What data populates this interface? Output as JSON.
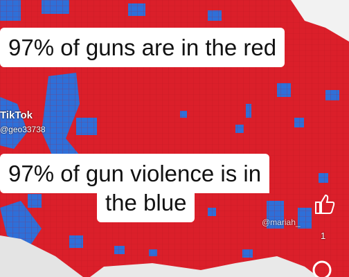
{
  "captions": [
    {
      "lines": [
        "97% of guns are in the red"
      ]
    },
    {
      "lines": [
        "97% of gun violence is in",
        "the blue"
      ]
    }
  ],
  "watermark": {
    "app": "TikTok",
    "handle": "@geo33738"
  },
  "overlay": {
    "handle": "@mariah_",
    "like_count": "1"
  }
}
